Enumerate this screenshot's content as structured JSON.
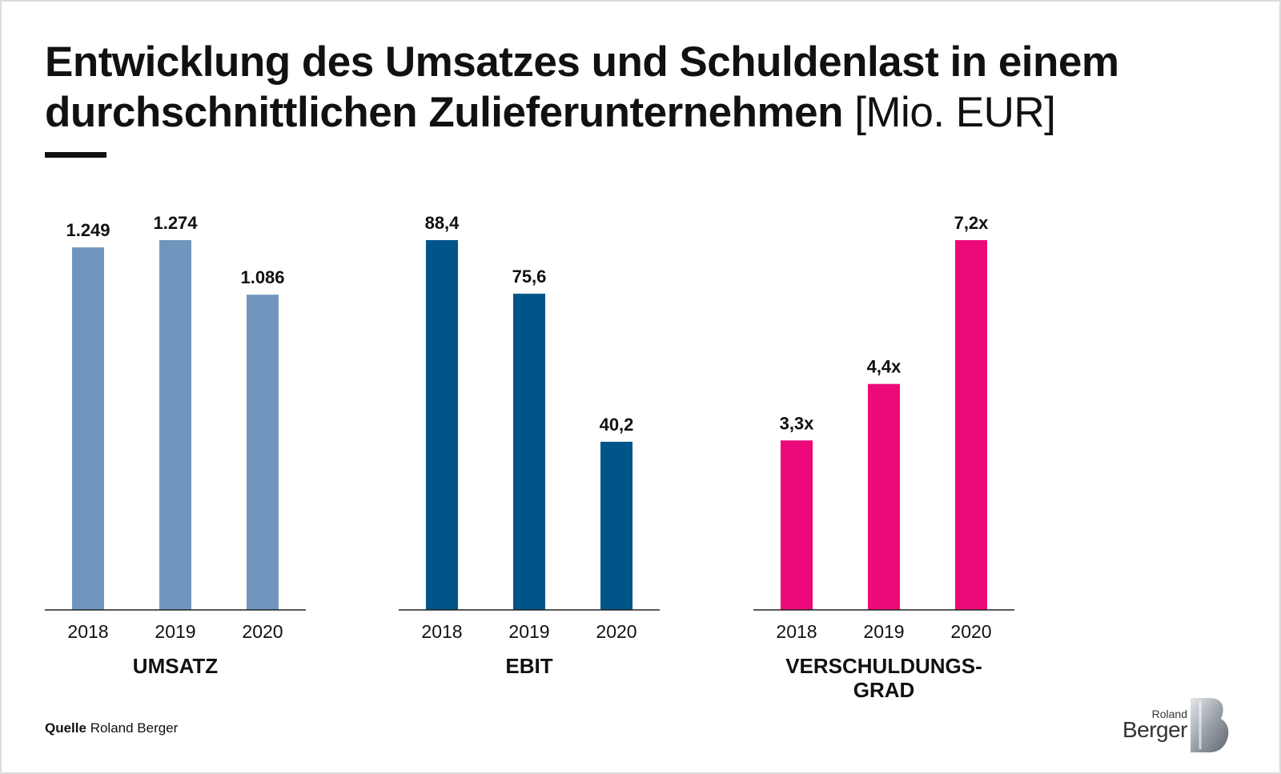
{
  "title_main": "Entwicklung des Umsatzes und Schuldenlast in einem durchschnittlichen Zulieferunternehmen ",
  "title_unit": "[Mio. EUR]",
  "source_label": "Quelle",
  "source_text": "Roland Berger",
  "logo": {
    "line1": "Roland",
    "line2": "Berger"
  },
  "colors": {
    "umsatz": "#7096bd",
    "ebit": "#005588",
    "verschuldungsgrad": "#ec0a7a"
  },
  "chart_data": [
    {
      "type": "bar",
      "title": [
        "UMSATZ"
      ],
      "categories": [
        "2018",
        "2019",
        "2020"
      ],
      "values": [
        1249,
        1274,
        1086
      ],
      "labels": [
        "1.249",
        "1.274",
        "1.086"
      ],
      "ylim": [
        0,
        1274
      ],
      "color": "#7096bd"
    },
    {
      "type": "bar",
      "title": [
        "EBIT"
      ],
      "categories": [
        "2018",
        "2019",
        "2020"
      ],
      "values": [
        88.4,
        75.6,
        40.2
      ],
      "labels": [
        "88,4",
        "75,6",
        "40,2"
      ],
      "ylim": [
        0,
        88.4
      ],
      "color": "#005588"
    },
    {
      "type": "bar",
      "title": [
        "VERSCHULDUNGS-",
        "GRAD"
      ],
      "categories": [
        "2018",
        "2019",
        "2020"
      ],
      "values": [
        3.3,
        4.4,
        7.2
      ],
      "labels": [
        "3,3x",
        "4,4x",
        "7,2x"
      ],
      "ylim": [
        0,
        7.2
      ],
      "color": "#ec0a7a"
    }
  ]
}
